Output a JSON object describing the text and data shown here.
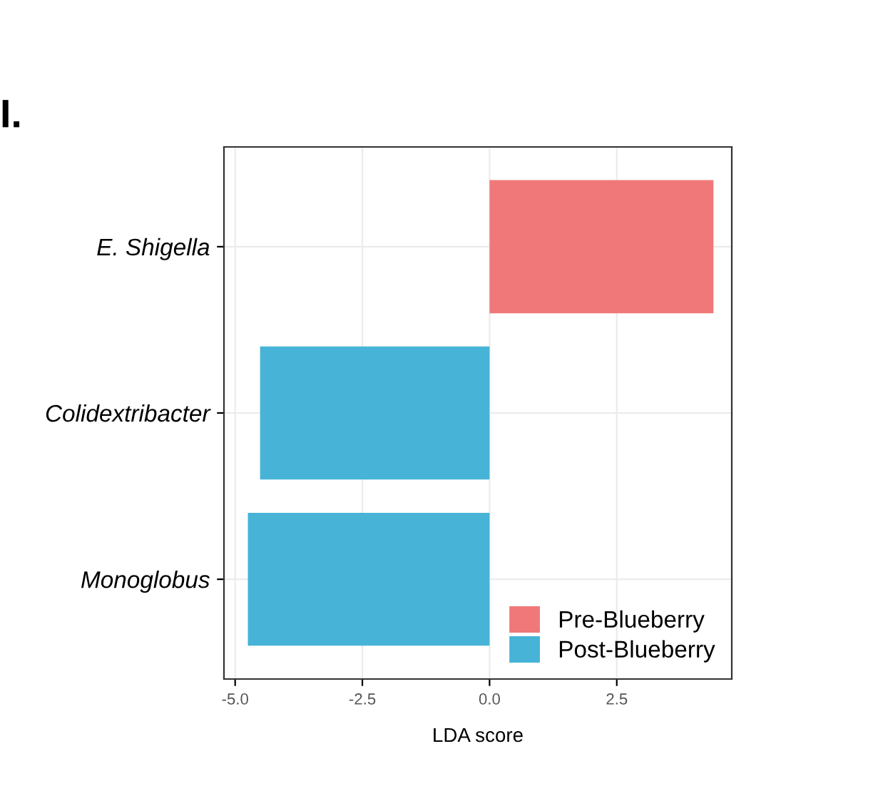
{
  "chart_data": {
    "type": "bar",
    "orientation": "horizontal",
    "xlabel": "LDA score",
    "annotations": [
      "I."
    ],
    "categories": [
      "E. Shigella",
      "Colidextribacter",
      "Monoglobus"
    ],
    "series": [
      {
        "name": "Pre-Blueberry",
        "color": "#f07878",
        "values": [
          4.4,
          null,
          null
        ]
      },
      {
        "name": "Post-Blueberry",
        "color": "#46b3d7",
        "values": [
          null,
          -4.51,
          -4.75
        ]
      }
    ],
    "xlim": [
      -5.22,
      4.76
    ],
    "xticks": [
      {
        "value": -5,
        "label": "-5.0"
      },
      {
        "value": -2.5,
        "label": "-2.5"
      },
      {
        "value": 0,
        "label": "0.0"
      },
      {
        "value": 2.5,
        "label": "2.5"
      }
    ],
    "grid": true,
    "legend": "bottom right"
  }
}
